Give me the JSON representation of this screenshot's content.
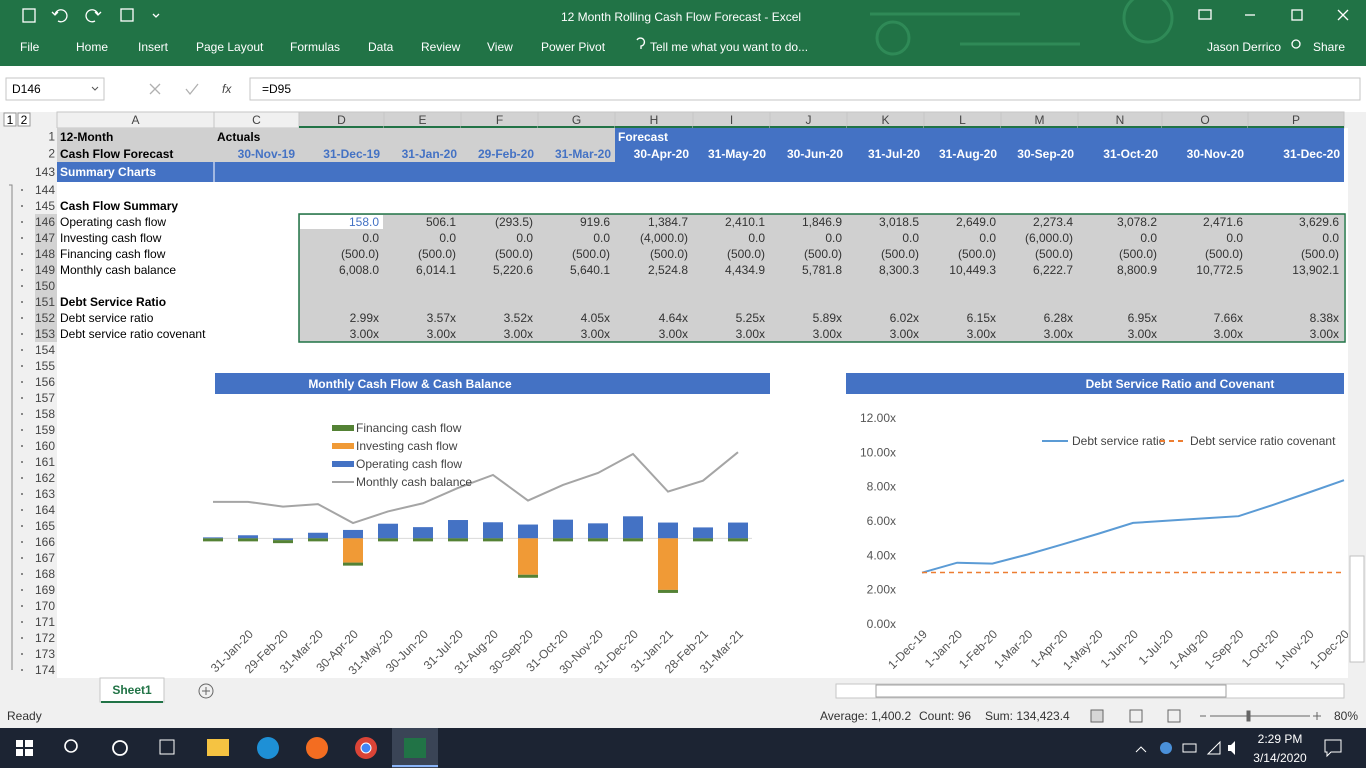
{
  "title_bar": {
    "title": "12 Month Rolling Cash Flow Forecast - Excel"
  },
  "ribbon": {
    "tabs": [
      "File",
      "Home",
      "Insert",
      "Page Layout",
      "Formulas",
      "Data",
      "Review",
      "View",
      "Power Pivot"
    ],
    "tell_me": "Tell me what you want to do...",
    "user": "Jason Derrico",
    "share": "Share"
  },
  "formula_bar": {
    "name_box": "D146",
    "fx_label": "fx",
    "formula": "=D95"
  },
  "outline_levels": [
    "1",
    "2"
  ],
  "columns": [
    "A",
    "C",
    "D",
    "E",
    "F",
    "G",
    "H",
    "I",
    "J",
    "K",
    "L",
    "M",
    "N",
    "O",
    "P"
  ],
  "sheet": {
    "row_numbers": [
      "1",
      "2",
      "143",
      "144",
      "145",
      "146",
      "147",
      "148",
      "149",
      "150",
      "151",
      "152",
      "153",
      "154",
      "155",
      "156",
      "157",
      "158",
      "159",
      "160",
      "161",
      "162",
      "163",
      "164",
      "165",
      "166",
      "167",
      "168",
      "169",
      "170",
      "171",
      "172",
      "173",
      "174"
    ],
    "header": {
      "title_line1": "12-Month",
      "title_line2": "Cash Flow Forecast",
      "actuals": "Actuals",
      "forecast": "Forecast",
      "dates": [
        "30-Nov-19",
        "31-Dec-19",
        "31-Jan-20",
        "29-Feb-20",
        "31-Mar-20",
        "30-Apr-20",
        "31-May-20",
        "30-Jun-20",
        "31-Jul-20",
        "31-Aug-20",
        "30-Sep-20",
        "31-Oct-20",
        "30-Nov-20",
        "31-Dec-20"
      ]
    },
    "section": "Summary Charts",
    "rows": [
      {
        "label": "Cash Flow Summary"
      },
      {
        "label": "Operating cash flow",
        "values": [
          "158.0",
          "506.1",
          "(293.5)",
          "919.6",
          "1,384.7",
          "2,410.1",
          "1,846.9",
          "3,018.5",
          "2,649.0",
          "2,273.4",
          "3,078.2",
          "2,471.6",
          "3,629.6"
        ]
      },
      {
        "label": "Investing cash flow",
        "values": [
          "0.0",
          "0.0",
          "0.0",
          "0.0",
          "(4,000.0)",
          "0.0",
          "0.0",
          "0.0",
          "0.0",
          "(6,000.0)",
          "0.0",
          "0.0",
          "0.0"
        ]
      },
      {
        "label": "Financing cash flow",
        "values": [
          "(500.0)",
          "(500.0)",
          "(500.0)",
          "(500.0)",
          "(500.0)",
          "(500.0)",
          "(500.0)",
          "(500.0)",
          "(500.0)",
          "(500.0)",
          "(500.0)",
          "(500.0)",
          "(500.0)"
        ]
      },
      {
        "label": "Monthly cash balance",
        "values": [
          "6,008.0",
          "6,014.1",
          "5,220.6",
          "5,640.1",
          "2,524.8",
          "4,434.9",
          "5,781.8",
          "8,300.3",
          "10,449.3",
          "6,222.7",
          "8,800.9",
          "10,772.5",
          "13,902.1"
        ]
      },
      {
        "label": "Debt Service Ratio"
      },
      {
        "label": "Debt service ratio",
        "values": [
          "2.99x",
          "3.57x",
          "3.52x",
          "4.05x",
          "4.64x",
          "5.25x",
          "5.89x",
          "6.02x",
          "6.15x",
          "6.28x",
          "6.95x",
          "7.66x",
          "8.38x"
        ]
      },
      {
        "label": "Debt service ratio covenant",
        "values": [
          "3.00x",
          "3.00x",
          "3.00x",
          "3.00x",
          "3.00x",
          "3.00x",
          "3.00x",
          "3.00x",
          "3.00x",
          "3.00x",
          "3.00x",
          "3.00x",
          "3.00x"
        ]
      }
    ]
  },
  "chart_data": [
    {
      "type": "bar",
      "title": "Monthly Cash Flow & Cash Balance",
      "stacked": true,
      "categories": [
        null,
        "31-Jan-20",
        "29-Feb-20",
        "31-Mar-20",
        "30-Apr-20",
        "31-May-20",
        "30-Jun-20",
        "31-Jul-20",
        "31-Aug-20",
        "30-Sep-20",
        "31-Oct-20",
        "30-Nov-20",
        "31-Dec-20",
        "31-Jan-21",
        "28-Feb-21",
        "31-Mar-21"
      ],
      "ylim": [
        -10000,
        20000
      ],
      "series": [
        {
          "name": "Financing cash flow",
          "color": "#548235",
          "values": [
            -500,
            -500,
            -500,
            -500,
            -500,
            -500,
            -500,
            -500,
            -500,
            -500,
            -500,
            -500,
            -500,
            -500,
            -500,
            -500
          ]
        },
        {
          "name": "Investing cash flow",
          "color": "#f09a36",
          "values": [
            0,
            0,
            0,
            0,
            -4000,
            0,
            0,
            0,
            0,
            -6000,
            0,
            0,
            0,
            -8500,
            0,
            0
          ]
        },
        {
          "name": "Operating cash flow",
          "color": "#4472c4",
          "values": [
            158,
            506.1,
            -293.5,
            919.6,
            1384.7,
            2410.1,
            1846.9,
            3018.5,
            2649,
            2273.4,
            3078.2,
            2471.6,
            3629.6,
            2600,
            1800,
            2600
          ]
        },
        {
          "name": "Monthly cash balance",
          "color": "#a5a5a5",
          "type": "line",
          "values": [
            6008,
            6014.1,
            5220.6,
            5640.1,
            2524.8,
            4434.9,
            5781.8,
            8300.3,
            10449.3,
            6222.7,
            8800.9,
            10772.5,
            13902.1,
            7700,
            9500,
            14200
          ]
        }
      ]
    },
    {
      "type": "line",
      "title": "Debt Service Ratio and Covenant",
      "categories": [
        "1-Dec-19",
        "1-Jan-20",
        "1-Feb-20",
        "1-Mar-20",
        "1-Apr-20",
        "1-May-20",
        "1-Jun-20",
        "1-Jul-20",
        "1-Aug-20",
        "1-Sep-20",
        "1-Oct-20",
        "1-Nov-20",
        "1-Dec-20"
      ],
      "ylim": [
        0,
        12
      ],
      "yticks": [
        {
          "value": 0,
          "label": "0.00x"
        },
        {
          "value": 2,
          "label": "2.00x"
        },
        {
          "value": 4,
          "label": "4.00x"
        },
        {
          "value": 6,
          "label": "6.00x"
        },
        {
          "value": 8,
          "label": "8.00x"
        },
        {
          "value": 10,
          "label": "10.00x"
        },
        {
          "value": 12,
          "label": "12.00x"
        }
      ],
      "series": [
        {
          "name": "Debt service ratio",
          "color": "#5b9bd5",
          "values": [
            2.99,
            3.57,
            3.52,
            4.05,
            4.64,
            5.25,
            5.89,
            6.02,
            6.15,
            6.28,
            6.95,
            7.66,
            8.38
          ]
        },
        {
          "name": "Debt service ratio covenant",
          "color": "#ed7d31",
          "dashed": true,
          "values": [
            3,
            3,
            3,
            3,
            3,
            3,
            3,
            3,
            3,
            3,
            3,
            3,
            3
          ]
        }
      ]
    }
  ],
  "sheet_tabs": {
    "active": "Sheet1"
  },
  "status_bar": {
    "mode": "Ready",
    "average": "Average: 1,400.2",
    "count": "Count: 96",
    "sum": "Sum: 134,423.4",
    "zoom": "80%"
  },
  "taskbar": {
    "time": "2:29 PM",
    "date": "3/14/2020"
  }
}
